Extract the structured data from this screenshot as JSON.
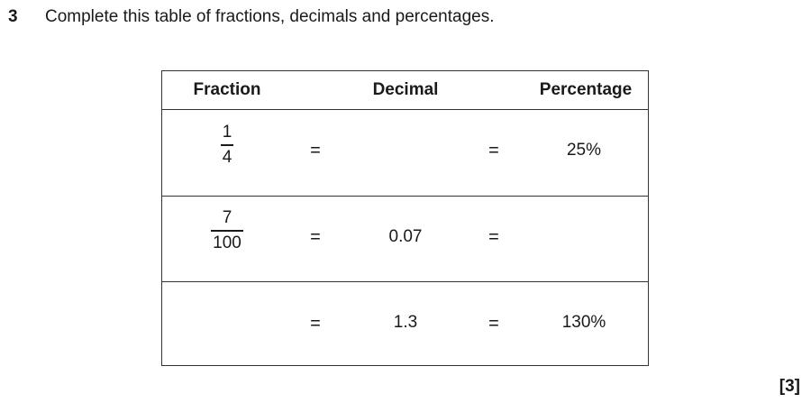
{
  "question": {
    "number": "3",
    "text": "Complete this table of fractions, decimals and percentages."
  },
  "table": {
    "headers": {
      "fraction": "Fraction",
      "decimal": "Decimal",
      "percentage": "Percentage"
    },
    "equals_sign": "=",
    "rows": [
      {
        "fraction": {
          "numerator": "1",
          "denominator": "4"
        },
        "decimal": "",
        "percentage": "25%"
      },
      {
        "fraction": {
          "numerator": "7",
          "denominator": "100"
        },
        "decimal": "0.07",
        "percentage": ""
      },
      {
        "fraction": null,
        "decimal": "1.3",
        "percentage": "130%"
      }
    ]
  },
  "marks": "[3]"
}
